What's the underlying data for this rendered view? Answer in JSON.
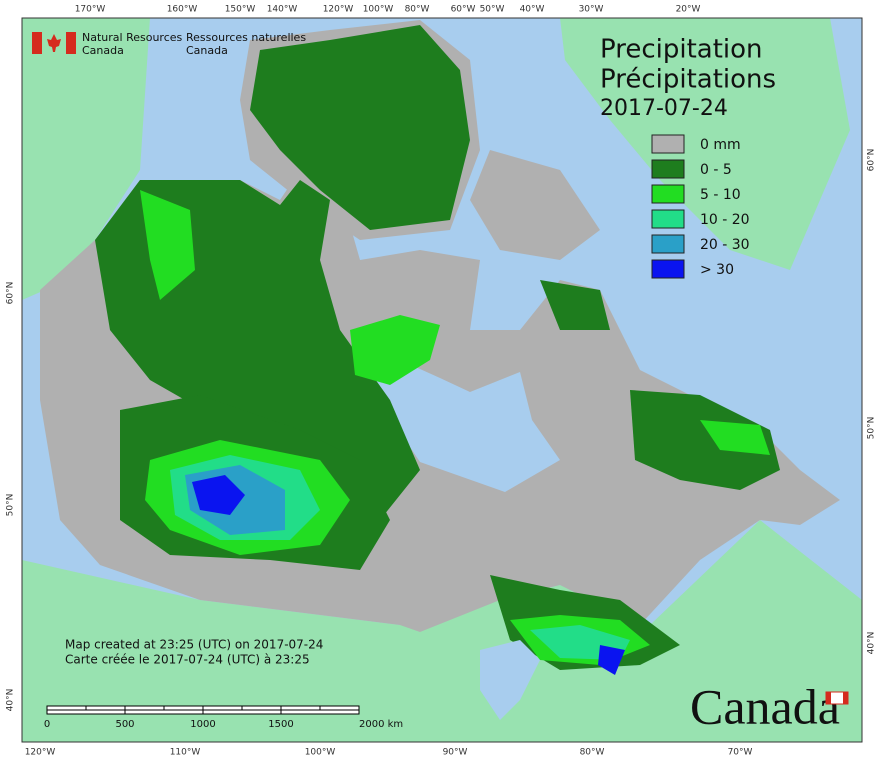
{
  "header": {
    "agency_en": [
      "Natural Resources",
      "Canada"
    ],
    "agency_fr": [
      "Ressources naturelles",
      "Canada"
    ]
  },
  "title": {
    "en": "Precipitation",
    "fr": "Précipitations",
    "date": "2017-07-24"
  },
  "legend": [
    {
      "label": "0 mm",
      "color": "#b0b0b0"
    },
    {
      "label": "0 - 5",
      "color": "#1e7d1e"
    },
    {
      "label": "5 - 10",
      "color": "#22dd22"
    },
    {
      "label": "10 - 20",
      "color": "#22dd88"
    },
    {
      "label": "20 - 30",
      "color": "#2aa0c8"
    },
    {
      "label": "> 30",
      "color": "#0a14f0"
    }
  ],
  "graticule": {
    "top": [
      "170°W",
      "160°W",
      "150°W",
      "140°W",
      "120°W",
      "100°W",
      "80°W",
      "60°W",
      "50°W",
      "40°W",
      "30°W",
      "20°W"
    ],
    "bottom": [
      "120°W",
      "110°W",
      "100°W",
      "90°W",
      "80°W",
      "70°W"
    ],
    "left": [
      "60°N",
      "50°N",
      "40°N"
    ],
    "right": [
      "60°N",
      "50°N",
      "40°N"
    ]
  },
  "credits": {
    "en": "Map created at 23:25 (UTC) on 2017-07-24",
    "fr": "Carte créée le 2017-07-24 (UTC) à 23:25"
  },
  "scale_bar": [
    "0",
    "500",
    "1000",
    "1500",
    "2000  km"
  ],
  "wordmark": "Canada"
}
